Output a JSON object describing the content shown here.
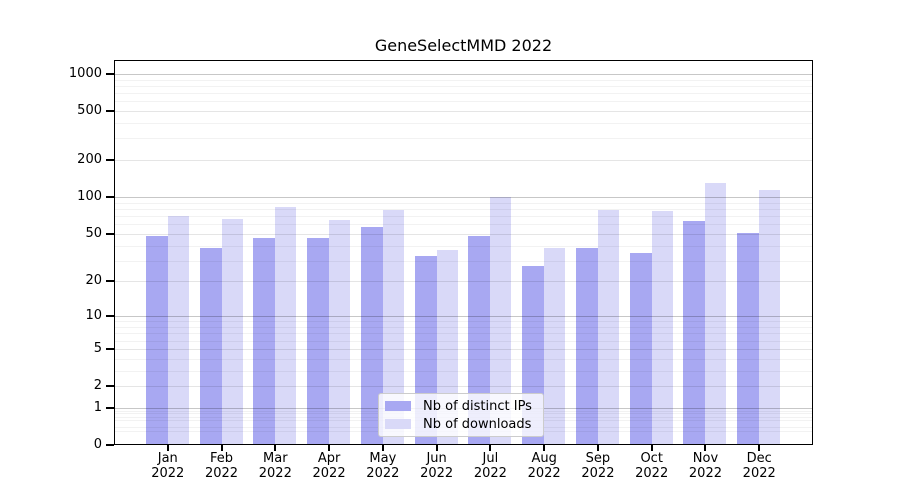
{
  "chart_data": {
    "type": "bar",
    "title": "GeneSelectMMD 2022",
    "categories": [
      "Jan 2022",
      "Feb 2022",
      "Mar 2022",
      "Apr 2022",
      "May 2022",
      "Jun 2022",
      "Jul 2022",
      "Aug 2022",
      "Sep 2022",
      "Oct 2022",
      "Nov 2022",
      "Dec 2022"
    ],
    "series": [
      {
        "name": "Nb of distinct IPs",
        "color": "#a8a8f2",
        "values": [
          48,
          38,
          46,
          46,
          57,
          33,
          48,
          27,
          38,
          35,
          64,
          51
        ]
      },
      {
        "name": "Nb of downloads",
        "color": "#d9d9f8",
        "values": [
          70,
          66,
          83,
          65,
          78,
          37,
          100,
          38,
          78,
          77,
          130,
          115
        ]
      }
    ],
    "xlabel": "",
    "ylabel": "",
    "ylim": [
      0,
      1000
    ],
    "y_scale": "log1p",
    "y_ticks": [
      0,
      1,
      2,
      5,
      10,
      20,
      50,
      100,
      200,
      500,
      1000
    ],
    "y_minor_gridlines": [
      0.3,
      0.4,
      0.6,
      0.7,
      0.8,
      0.9,
      3,
      4,
      6,
      7,
      8,
      9,
      30,
      40,
      60,
      70,
      80,
      90,
      300,
      400,
      600,
      700,
      800,
      900
    ],
    "grid": true,
    "legend_position": "lower center"
  },
  "colors": {
    "background": "#ffffff",
    "frame": "#000000",
    "text": "#000000",
    "gridline_decade": "rgba(0,0,0,0.22)",
    "gridline_major": "rgba(0,0,0,0.10)",
    "gridline_minor": "rgba(0,0,0,0.05)",
    "legend_border": "#cccccc"
  }
}
